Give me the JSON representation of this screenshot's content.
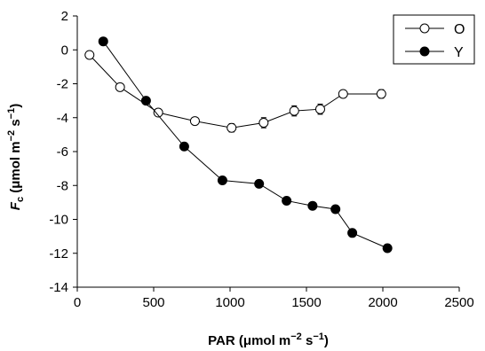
{
  "chart_data": {
    "type": "scatter",
    "xlabel": {
      "main": "PAR (",
      "mu": "μ",
      "rest": "mol m",
      "exp": "−2",
      "after": " s",
      "exp2": "−1",
      "close": ")"
    },
    "ylabel": {
      "var": "F",
      "sub": "c",
      "open": " (",
      "mu": "μ",
      "rest": "mol m",
      "exp": "−2",
      "after": " s",
      "exp2": "−1",
      "close": ")"
    },
    "xlim": [
      0,
      2500
    ],
    "ylim": [
      -14,
      2
    ],
    "xticks": [
      0,
      500,
      1000,
      1500,
      2000,
      2500
    ],
    "yticks": [
      2,
      0,
      -2,
      -4,
      -6,
      -8,
      -10,
      -12,
      -14
    ],
    "legend_position": "top-right",
    "grid": false,
    "series": [
      {
        "name": "O",
        "marker": "open-circle",
        "error_bars": true,
        "x": [
          80,
          280,
          530,
          770,
          1010,
          1220,
          1420,
          1590,
          1740,
          1990
        ],
        "y": [
          -0.3,
          -2.2,
          -3.7,
          -4.2,
          -4.6,
          -4.3,
          -3.6,
          -3.5,
          -2.6,
          -2.6
        ],
        "err": [
          0.15,
          0.15,
          0.2,
          0.2,
          0.25,
          0.3,
          0.3,
          0.3,
          0.2,
          0.25
        ]
      },
      {
        "name": "Y",
        "marker": "filled-circle",
        "error_bars": false,
        "x": [
          170,
          450,
          700,
          950,
          1190,
          1370,
          1540,
          1690,
          1800,
          2030
        ],
        "y": [
          0.5,
          -3.0,
          -5.7,
          -7.7,
          -7.9,
          -8.9,
          -9.2,
          -9.4,
          -10.8,
          -11.7
        ]
      }
    ]
  }
}
